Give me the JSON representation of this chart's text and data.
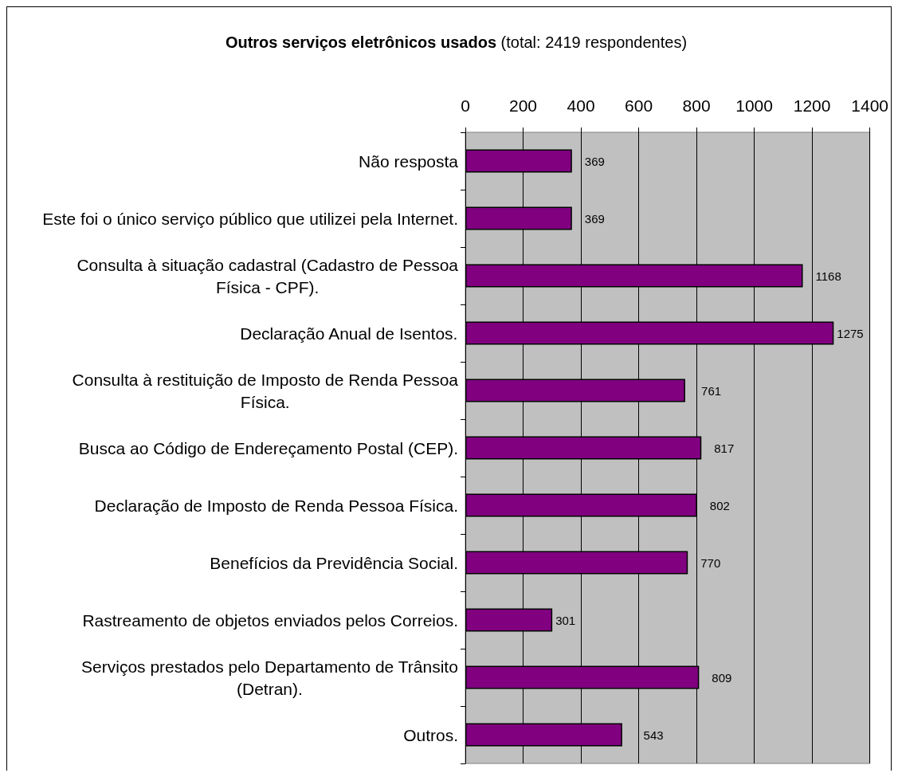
{
  "chart_data": {
    "type": "bar",
    "orientation": "horizontal",
    "title": "Outros serviços eletrônicos usados",
    "subtitle": "(total: 2419 respondentes)",
    "categories": [
      "Não resposta",
      "Este foi o único serviço público que utilizei pela Internet.",
      "Consulta à situação cadastral (Cadastro de Pessoa\nFísica - CPF).",
      "Declaração Anual de Isentos.",
      "Consulta à restituição de Imposto de Renda Pessoa\nFísica.",
      "Busca ao Código de Endereçamento Postal (CEP).",
      "Declaração de Imposto de Renda Pessoa Física.",
      "Benefícios da Previdência Social.",
      "Rastreamento de objetos enviados pelos Correios.",
      "Serviços prestados pelo Departamento de Trânsito\n(Detran).",
      "Outros."
    ],
    "values": [
      369,
      369,
      1168,
      1275,
      761,
      817,
      802,
      770,
      301,
      809,
      543
    ],
    "color": "#800080",
    "xlim": [
      0,
      1400
    ],
    "xticks": [
      0,
      200,
      400,
      600,
      800,
      1000,
      1200,
      1400
    ],
    "grid": "x",
    "data_labels": true
  }
}
